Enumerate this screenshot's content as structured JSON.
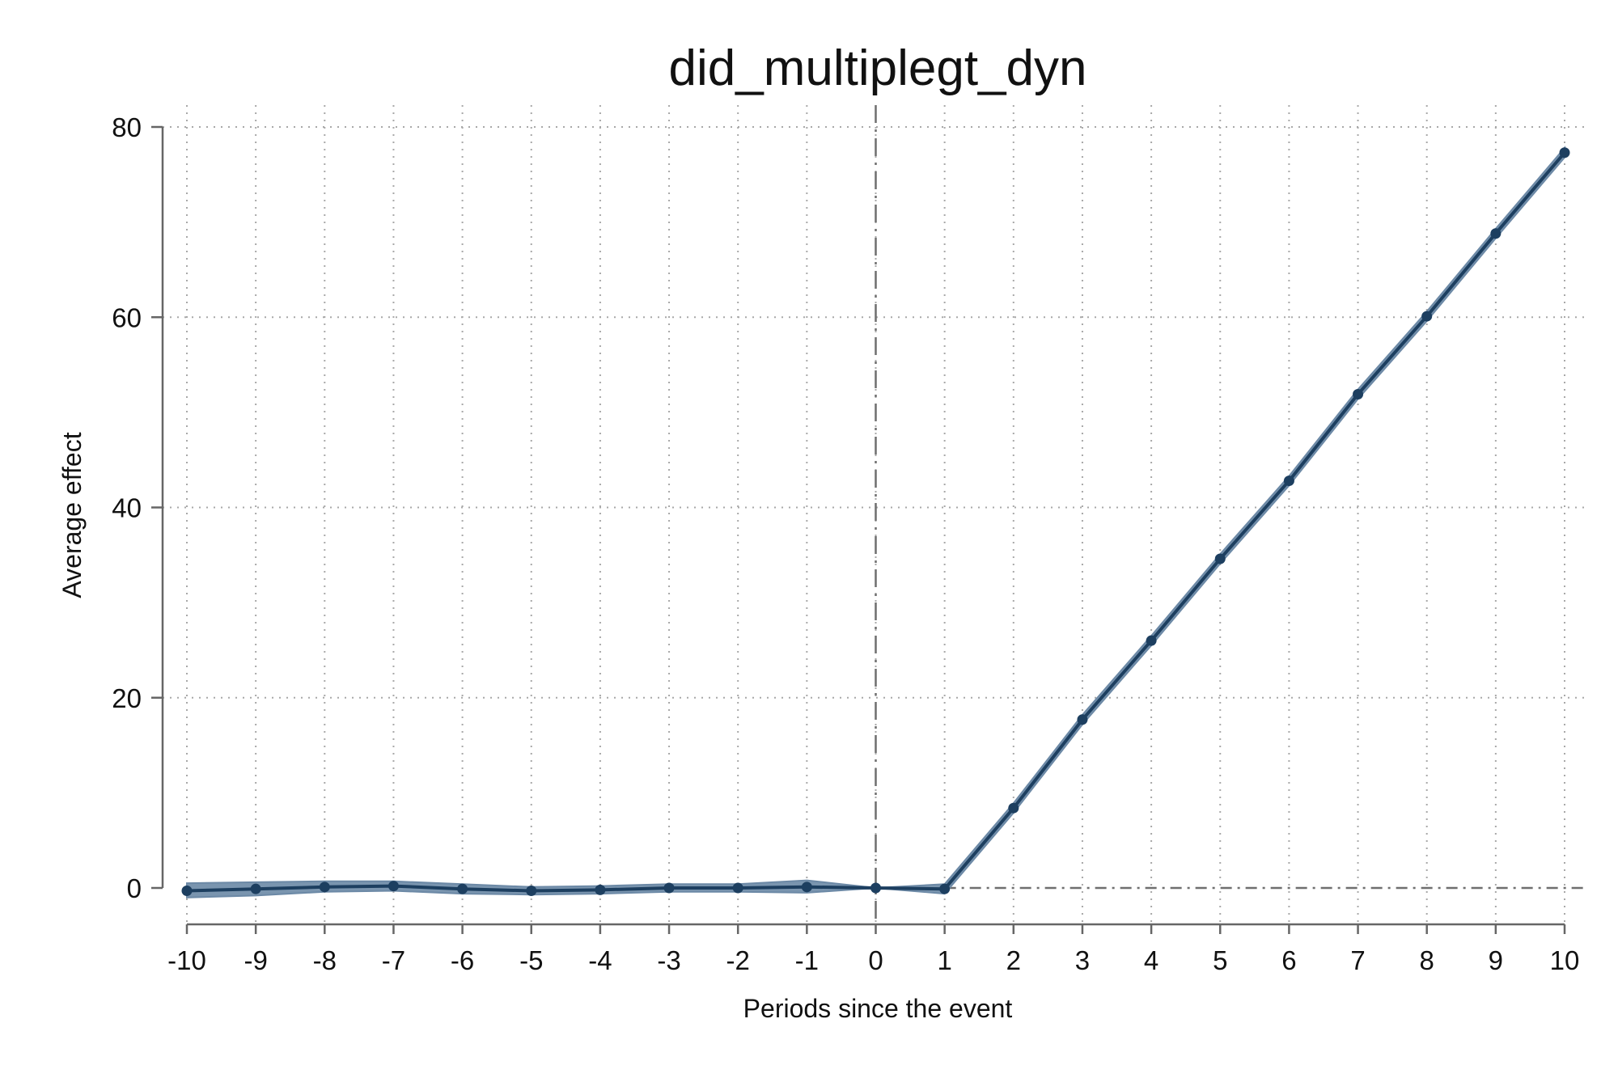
{
  "chart_data": {
    "type": "line",
    "title": "did_multiplegt_dyn",
    "xlabel": "Periods since the event",
    "ylabel": "Average effect",
    "xlim": [
      -10,
      10
    ],
    "ylim": [
      0,
      80
    ],
    "x_ticks": [
      -10,
      -9,
      -8,
      -7,
      -6,
      -5,
      -4,
      -3,
      -2,
      -1,
      0,
      1,
      2,
      3,
      4,
      5,
      6,
      7,
      8,
      9,
      10
    ],
    "y_ticks": [
      0,
      20,
      40,
      60,
      80
    ],
    "grid": true,
    "legend": "none",
    "reference_lines": [
      {
        "axis": "x",
        "value": 0,
        "style": "dash-dot"
      },
      {
        "axis": "y",
        "value": 0,
        "style": "dash-dot",
        "from_x": 1
      }
    ],
    "series": [
      {
        "x": [
          -10,
          -9,
          -8,
          -7,
          -6,
          -5,
          -4,
          -3,
          -2,
          -1,
          0,
          1,
          2,
          3,
          4,
          5,
          6,
          7,
          8,
          9,
          10
        ],
        "y": [
          -0.3,
          -0.1,
          0.1,
          0.2,
          -0.1,
          -0.3,
          -0.2,
          0.0,
          0.0,
          0.1,
          0.0,
          -0.1,
          8.4,
          17.7,
          26.0,
          34.6,
          42.8,
          51.9,
          60.1,
          68.8,
          77.3
        ],
        "ci_lower": [
          -1.0,
          -0.8,
          -0.4,
          -0.3,
          -0.6,
          -0.7,
          -0.6,
          -0.4,
          -0.4,
          -0.5,
          0.0,
          -0.6,
          7.9,
          17.2,
          25.5,
          34.1,
          42.3,
          51.4,
          59.6,
          68.3,
          76.8
        ],
        "ci_upper": [
          0.5,
          0.6,
          0.7,
          0.7,
          0.4,
          0.1,
          0.2,
          0.4,
          0.4,
          0.8,
          0.0,
          0.4,
          8.9,
          18.2,
          26.5,
          35.1,
          43.3,
          52.4,
          60.6,
          69.3,
          77.8
        ]
      }
    ],
    "colors": {
      "line": "#1d3f60",
      "ci": "#6c89a6",
      "axis": "#666666",
      "grid": "#a8a8a8"
    }
  }
}
